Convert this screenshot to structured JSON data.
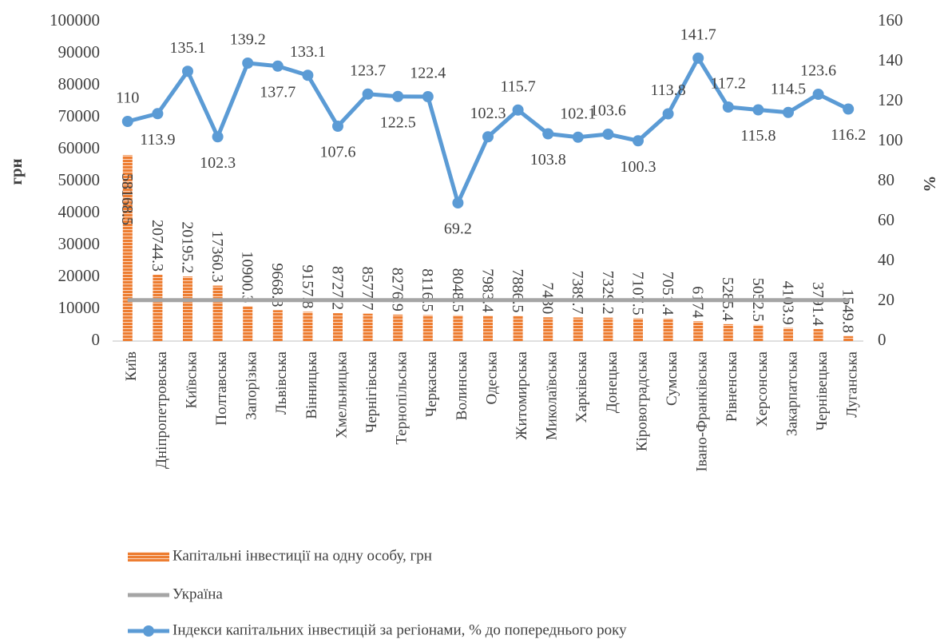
{
  "chart_data": {
    "type": "bar",
    "categories": [
      "Київ",
      "Дніпропетровська",
      "Київська",
      "Полтавська",
      "Запорізька",
      "Львівська",
      "Вінницька",
      "Хмельницька",
      "Чернігівська",
      "Тернопільська",
      "Черкаська",
      "Волинська",
      "Одеська",
      "Житомирська",
      "Миколаївська",
      "Харківська",
      "Донецька",
      "Кіровоградська",
      "Сумська",
      "Івано-Франківська",
      "Рівненська",
      "Херсонська",
      "Закарпатська",
      "Чернівецька",
      "Луганська"
    ],
    "series": [
      {
        "name": "Капітальні інвестиції на одну особу, грн",
        "type": "bar",
        "color": "#ed7d31",
        "values": [
          58168.5,
          20744.3,
          20195.2,
          17360.3,
          10900.3,
          9668.8,
          9157.8,
          8727.2,
          8577.7,
          8276.9,
          8116.5,
          8048.5,
          7983.4,
          7886.5,
          7430,
          7389.7,
          7329.2,
          7107.5,
          7051.4,
          6174,
          5285.4,
          5052.5,
          4103.9,
          3791.4,
          1549.8
        ]
      },
      {
        "name": "Україна",
        "type": "line",
        "color": "#a5a5a5",
        "values": [
          12800,
          12800,
          12800,
          12800,
          12800,
          12800,
          12800,
          12800,
          12800,
          12800,
          12800,
          12800,
          12800,
          12800,
          12800,
          12800,
          12800,
          12800,
          12800,
          12800,
          12800,
          12800,
          12800,
          12800,
          12800
        ]
      },
      {
        "name": "Індекси капітальних інвестицій за регіонами, % до  попереднього року",
        "type": "line",
        "axis": "y2",
        "color": "#5b9bd5",
        "values": [
          110,
          113.9,
          135.1,
          102.3,
          139.2,
          137.7,
          133.1,
          107.6,
          123.7,
          122.5,
          122.4,
          69.2,
          102.3,
          115.7,
          103.8,
          102.1,
          103.6,
          100.3,
          113.8,
          141.7,
          117.2,
          115.8,
          114.5,
          123.6,
          116.2
        ]
      }
    ],
    "ylabel": "грн",
    "y2label": "%",
    "ylim": [
      0,
      100000
    ],
    "yticks": [
      0,
      10000,
      20000,
      30000,
      40000,
      50000,
      60000,
      70000,
      80000,
      90000,
      100000
    ],
    "y2lim": [
      0,
      160
    ],
    "y2ticks": [
      0,
      20,
      40,
      60,
      80,
      100,
      120,
      140,
      160
    ]
  }
}
